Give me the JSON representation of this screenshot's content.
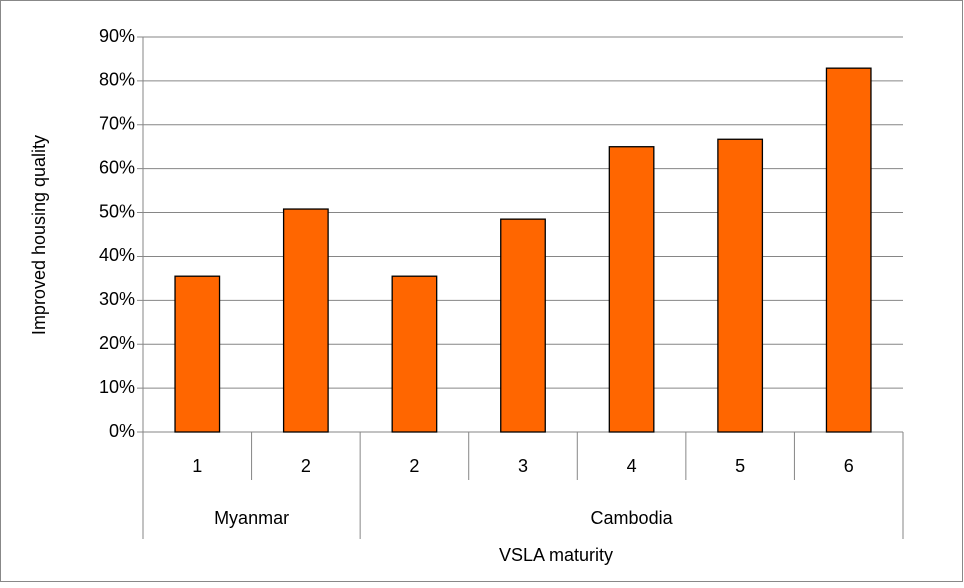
{
  "chart_data": {
    "type": "bar",
    "x_label": "VSLA maturity",
    "y_label": "Improved housing quality",
    "color": "#ff6600",
    "groups": [
      {
        "name": "Myanmar",
        "categories": [
          "1",
          "2"
        ],
        "values": [
          35.5,
          50.8
        ]
      },
      {
        "name": "Cambodia",
        "categories": [
          "2",
          "3",
          "4",
          "5",
          "6"
        ],
        "values": [
          35.5,
          48.5,
          65,
          66.7,
          82.9
        ]
      }
    ],
    "ylim": [
      0,
      90
    ],
    "yticks": [
      {
        "value": 0,
        "label": "0%"
      },
      {
        "value": 10,
        "label": "10%"
      },
      {
        "value": 20,
        "label": "20%"
      },
      {
        "value": 30,
        "label": "30%"
      },
      {
        "value": 40,
        "label": "40%"
      },
      {
        "value": 50,
        "label": "50%"
      },
      {
        "value": 60,
        "label": "60%"
      },
      {
        "value": 70,
        "label": "70%"
      },
      {
        "value": 80,
        "label": "80%"
      },
      {
        "value": 90,
        "label": "90%"
      }
    ],
    "grid": true
  }
}
